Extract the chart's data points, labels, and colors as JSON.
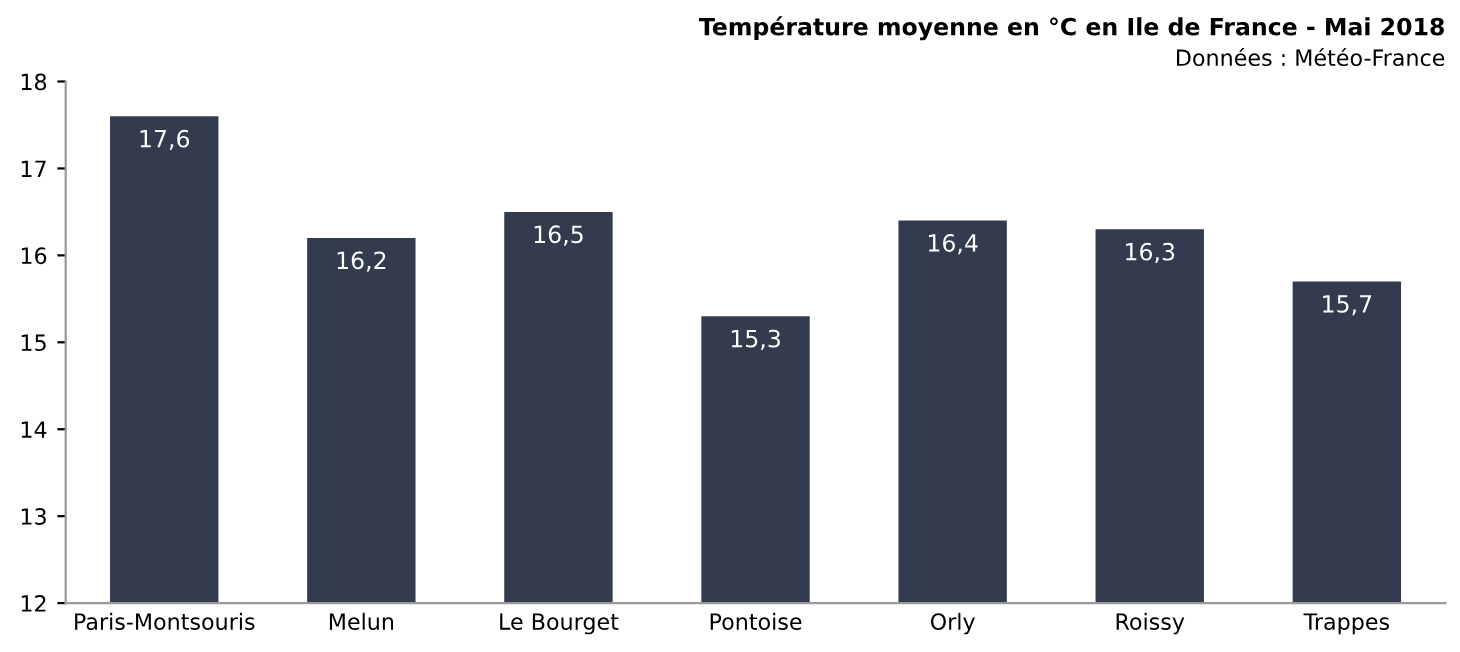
{
  "chart_data": {
    "type": "bar",
    "title": "Température moyenne en °C en Ile de France - Mai 2018",
    "subtitle": "Données : Météo-France",
    "categories": [
      "Paris-Montsouris",
      "Melun",
      "Le Bourget",
      "Pontoise",
      "Orly",
      "Roissy",
      "Trappes"
    ],
    "values": [
      17.6,
      16.2,
      16.5,
      15.3,
      16.4,
      16.3,
      15.7
    ],
    "value_labels": [
      "17,6",
      "16,2",
      "16,5",
      "15,3",
      "16,4",
      "16,3",
      "15,7"
    ],
    "color": "#333c4f",
    "ylim": [
      12,
      18
    ],
    "yticks": [
      12,
      13,
      14,
      15,
      16,
      17,
      18
    ],
    "grid": false
  }
}
